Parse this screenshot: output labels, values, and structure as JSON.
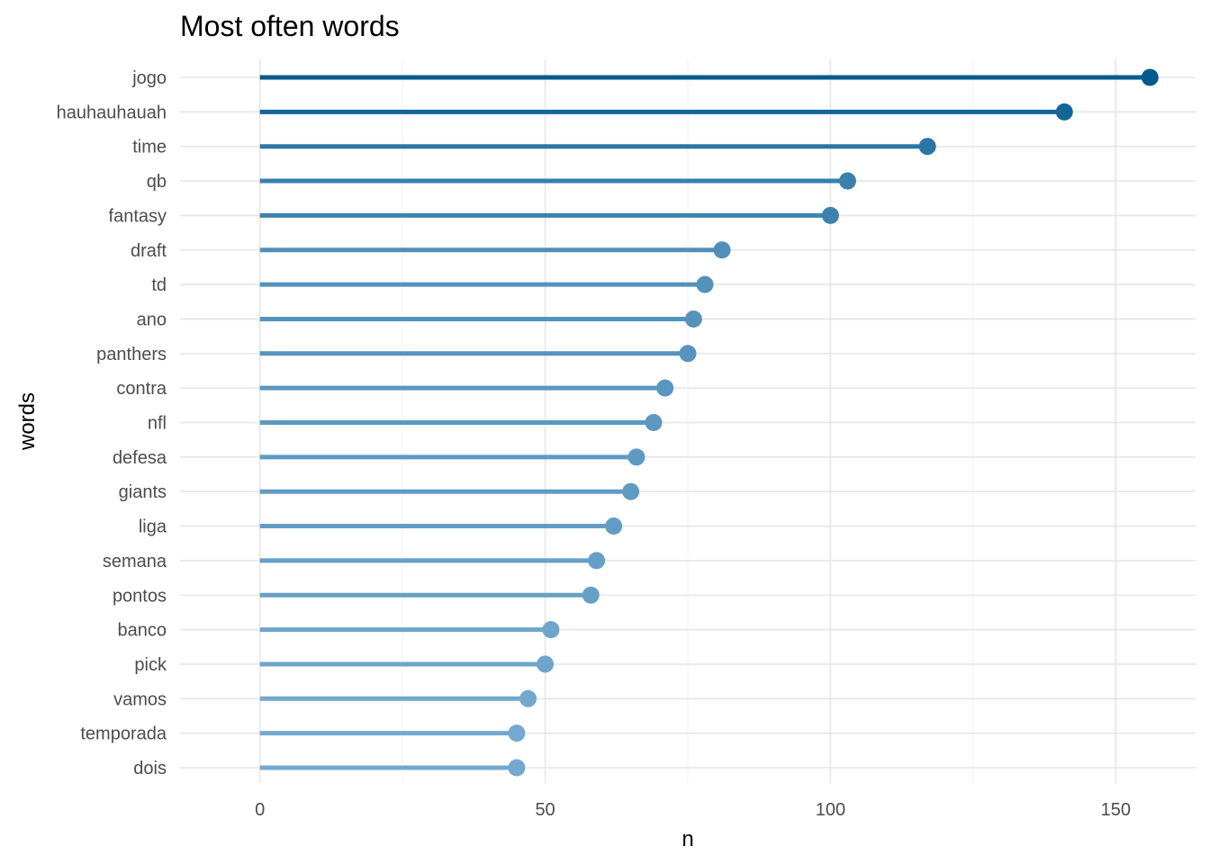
{
  "chart_data": {
    "type": "lollipop",
    "title": "Most often words",
    "xlabel": "n",
    "ylabel": "words",
    "xlim": [
      -14,
      164
    ],
    "x_ticks": [
      0,
      50,
      100,
      150
    ],
    "x_minor_ticks": [
      25,
      75,
      125
    ],
    "grid": true,
    "legend": "none",
    "categories": [
      "jogo",
      "hauhauhauah",
      "time",
      "qb",
      "fantasy",
      "draft",
      "td",
      "ano",
      "panthers",
      "contra",
      "nfl",
      "defesa",
      "giants",
      "liga",
      "semana",
      "pontos",
      "banco",
      "pick",
      "vamos",
      "temporada",
      "dois"
    ],
    "values": [
      156,
      141,
      117,
      103,
      100,
      81,
      78,
      76,
      75,
      71,
      69,
      66,
      65,
      62,
      59,
      58,
      51,
      50,
      47,
      45,
      45
    ],
    "color_low": "#74a9cf",
    "color_high": "#045a8d"
  }
}
